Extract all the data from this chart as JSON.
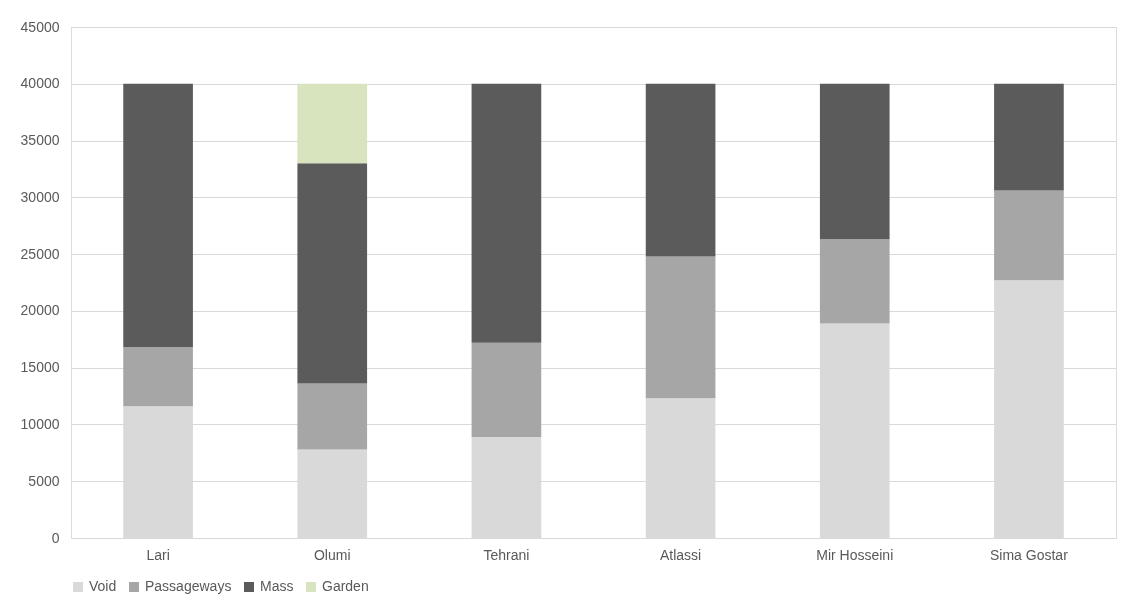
{
  "chart_data": {
    "type": "bar",
    "stacked": true,
    "categories": [
      "Lari",
      "Olumi",
      "Tehrani",
      "Atlassi",
      "Mir Hosseini",
      "Sima Gostar"
    ],
    "series": [
      {
        "name": "Void",
        "color": "#d9d9d9",
        "values": [
          11600,
          7800,
          8900,
          12300,
          18900,
          22700
        ]
      },
      {
        "name": "Passageways",
        "color": "#a6a6a6",
        "values": [
          5200,
          5800,
          8300,
          12500,
          7400,
          7900
        ]
      },
      {
        "name": "Mass",
        "color": "#5b5b5b",
        "values": [
          23200,
          19400,
          22800,
          15200,
          13700,
          9400
        ]
      },
      {
        "name": "Garden",
        "color": "#d7e4bd",
        "values": [
          0,
          7000,
          0,
          0,
          0,
          0
        ]
      }
    ],
    "ylim": [
      0,
      45000
    ],
    "yticks": [
      0,
      5000,
      10000,
      15000,
      20000,
      25000,
      30000,
      35000,
      40000,
      45000
    ],
    "grid": "y",
    "legend": "bottom"
  }
}
